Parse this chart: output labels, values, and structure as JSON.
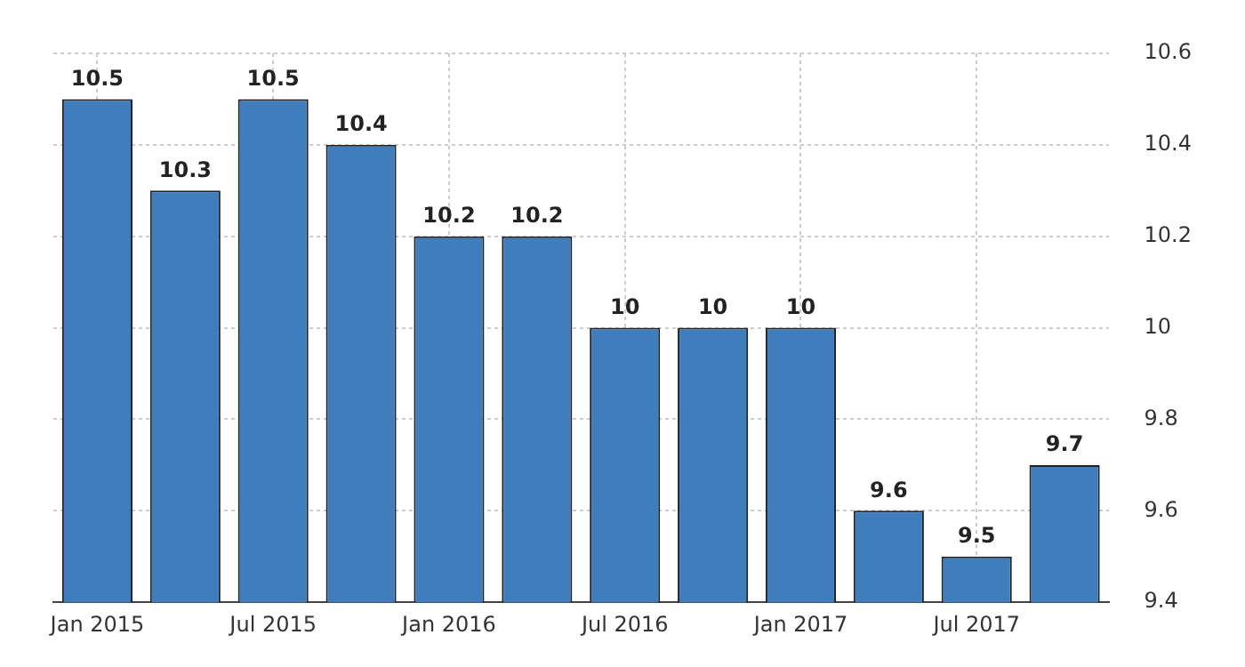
{
  "chart_data": {
    "type": "bar",
    "categories": [
      "Jan 2015",
      null,
      "Jul 2015",
      null,
      "Jan 2016",
      null,
      "Jul 2016",
      null,
      "Jan 2017",
      null,
      "Jul 2017",
      null
    ],
    "values": [
      10.5,
      10.3,
      10.5,
      10.4,
      10.2,
      10.2,
      10,
      10,
      10,
      9.6,
      9.5,
      9.7
    ],
    "color": "#3f7dbd",
    "ylim": [
      9.4,
      10.6
    ],
    "yticks": [
      9.4,
      9.6,
      9.8,
      10,
      10.2,
      10.4,
      10.6
    ],
    "grid": true,
    "data_labels": true
  }
}
